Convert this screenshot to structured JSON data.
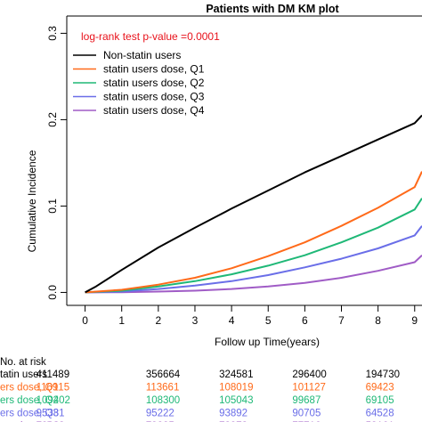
{
  "chart_data": {
    "type": "line",
    "title": "Patients with DM KM plot",
    "xlabel": "Follow up Time(years)",
    "ylabel": "Cumulative Incidence",
    "xlim": [
      -0.5,
      9.2
    ],
    "ylim": [
      -0.015,
      0.32
    ],
    "x_ticks": [
      0,
      1,
      2,
      3,
      4,
      5,
      6,
      7,
      8,
      9
    ],
    "y_ticks": [
      0.0,
      0.1,
      0.2,
      0.3
    ],
    "y_tick_labels": [
      "0.0",
      "0.1",
      "0.2",
      "0.3"
    ],
    "annotation": "log-rank test p-value =0.0001",
    "legend_position": "top-left",
    "series": [
      {
        "name": "Non-statin users",
        "color": "#000000",
        "x": [
          0,
          0.3,
          1,
          2,
          3,
          4,
          5,
          6,
          7,
          8,
          9,
          9.2
        ],
        "y": [
          0,
          0.007,
          0.026,
          0.052,
          0.075,
          0.097,
          0.118,
          0.139,
          0.158,
          0.177,
          0.196,
          0.205
        ]
      },
      {
        "name": "statin users dose, Q1",
        "color": "#ff6a1a",
        "x": [
          0,
          1,
          2,
          3,
          4,
          5,
          6,
          7,
          8,
          9,
          9.2
        ],
        "y": [
          0,
          0.003,
          0.009,
          0.017,
          0.028,
          0.042,
          0.058,
          0.077,
          0.098,
          0.122,
          0.14
        ]
      },
      {
        "name": "statin users dose, Q2",
        "color": "#1fb877",
        "x": [
          0,
          1,
          2,
          3,
          4,
          5,
          6,
          7,
          8,
          9,
          9.2
        ],
        "y": [
          0,
          0.002,
          0.007,
          0.013,
          0.021,
          0.031,
          0.043,
          0.058,
          0.075,
          0.096,
          0.109
        ]
      },
      {
        "name": "statin users dose, Q3",
        "color": "#6a6ee8",
        "x": [
          0,
          1,
          2,
          3,
          4,
          5,
          6,
          7,
          8,
          9,
          9.2
        ],
        "y": [
          0,
          0.001,
          0.004,
          0.008,
          0.013,
          0.02,
          0.029,
          0.039,
          0.051,
          0.066,
          0.077
        ]
      },
      {
        "name": "statin users dose, Q4",
        "color": "#a05cc6",
        "x": [
          0,
          1,
          2,
          3,
          4,
          5,
          6,
          7,
          8,
          9,
          9.2
        ],
        "y": [
          0,
          0.0003,
          0.001,
          0.002,
          0.004,
          0.007,
          0.011,
          0.017,
          0.025,
          0.035,
          0.043
        ]
      }
    ],
    "risk_table": {
      "header": "No. at risk",
      "rows": [
        {
          "label": "tatin users",
          "color": "#000000",
          "values": [
            "411489",
            "356664",
            "324581",
            "296400",
            "194730"
          ]
        },
        {
          "label": "ers dose, Q1",
          "color": "#ff6a1a",
          "values": [
            "116915",
            "113661",
            "108019",
            "101127",
            "69423"
          ]
        },
        {
          "label": "ers dose, Q2",
          "color": "#1fb877",
          "values": [
            "109402",
            "108300",
            "105043",
            "99687",
            "69105"
          ]
        },
        {
          "label": "ers dose, Q3",
          "color": "#6a6ee8",
          "values": [
            "95381",
            "95222",
            "93892",
            "90705",
            "64528"
          ]
        },
        {
          "label": "ers dose, Q4",
          "color": "#a05cc6",
          "values": [
            "79233",
            "79225",
            "78973",
            "77716",
            "58161"
          ]
        }
      ]
    }
  }
}
